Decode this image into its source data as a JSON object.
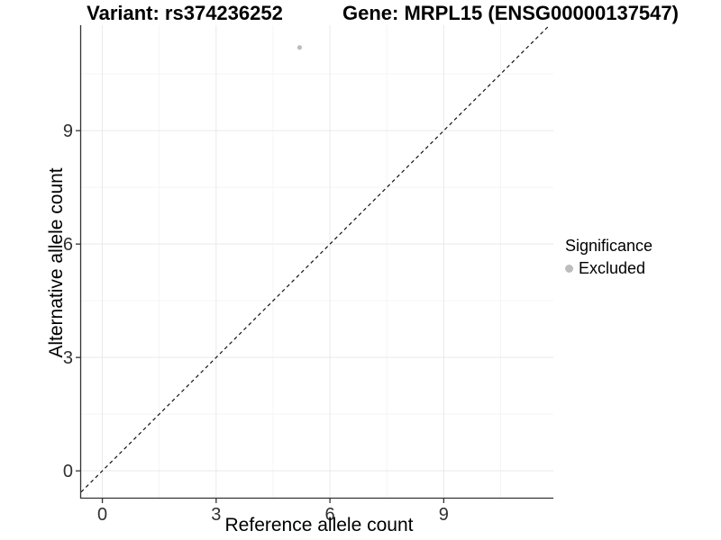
{
  "header": {
    "variant_title": "Variant: rs374236252",
    "gene_title": "Gene: MRPL15 (ENSG00000137547)"
  },
  "chart_data": {
    "type": "scatter",
    "title": "Variant: rs374236252  /  Gene: MRPL15 (ENSG00000137547)",
    "xlabel": "Reference allele count",
    "ylabel": "Alternative allele count",
    "xlim": [
      -0.56,
      11.89
    ],
    "ylim": [
      -0.71,
      11.79
    ],
    "x_ticks": [
      0,
      3,
      6,
      9
    ],
    "y_ticks": [
      0,
      3,
      6,
      9
    ],
    "x_minor_ticks": [
      1.5,
      4.5,
      7.5,
      10.5
    ],
    "y_minor_ticks": [
      1.5,
      4.5,
      7.5,
      10.5
    ],
    "grid": "major+minor",
    "points": [
      {
        "x": 5.2,
        "y": 11.2,
        "series": "Excluded"
      }
    ],
    "identity_line": {
      "slope": 1,
      "intercept": 0,
      "style": "dashed",
      "color": "#111111"
    },
    "legend": {
      "title": "Significance",
      "position": "right",
      "items": [
        {
          "label": "Excluded",
          "color": "#bdbdbd"
        }
      ]
    },
    "colors": {
      "point_excluded": "#bdbdbd",
      "axis": "#333333",
      "tick_text": "#303030",
      "grid_major": "#e9e9e9",
      "grid_minor": "#f5f5f5"
    }
  }
}
